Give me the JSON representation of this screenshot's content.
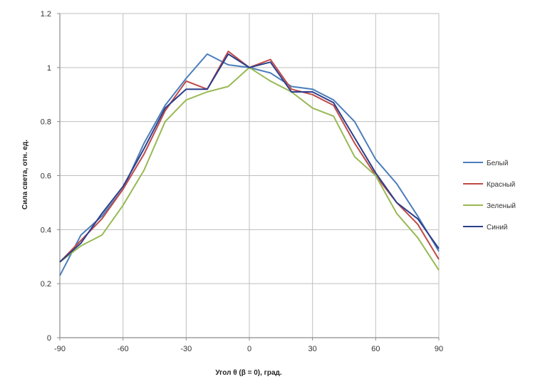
{
  "chart_data": {
    "type": "line",
    "title": "",
    "xlabel": "Угол θ (β = 0), град.",
    "ylabel": "Сила света, отн. ед.",
    "xlim": [
      -90,
      90
    ],
    "ylim": [
      0,
      1.2
    ],
    "x_ticks": [
      -90,
      -60,
      -30,
      0,
      30,
      60,
      90
    ],
    "y_ticks": [
      0,
      0.2,
      0.4,
      0.6,
      0.8,
      1,
      1.2
    ],
    "grid": true,
    "legend_position": "right",
    "x": [
      -90,
      -80,
      -70,
      -60,
      -50,
      -40,
      -30,
      -20,
      -10,
      0,
      10,
      20,
      30,
      40,
      50,
      60,
      70,
      80,
      90
    ],
    "series": [
      {
        "name": "Белый",
        "color": "#4a7ebb",
        "values": [
          0.23,
          0.38,
          0.45,
          0.55,
          0.72,
          0.86,
          0.96,
          1.05,
          1.01,
          1.0,
          0.98,
          0.93,
          0.92,
          0.88,
          0.8,
          0.66,
          0.57,
          0.45,
          0.32
        ]
      },
      {
        "name": "Красный",
        "color": "#be4b48",
        "values": [
          0.28,
          0.36,
          0.44,
          0.55,
          0.68,
          0.84,
          0.95,
          0.92,
          1.06,
          1.0,
          1.03,
          0.92,
          0.9,
          0.86,
          0.72,
          0.6,
          0.5,
          0.42,
          0.29
        ]
      },
      {
        "name": "Зеленый",
        "color": "#98b954",
        "values": [
          0.28,
          0.34,
          0.38,
          0.49,
          0.62,
          0.8,
          0.88,
          0.91,
          0.93,
          1.0,
          0.95,
          0.91,
          0.85,
          0.82,
          0.67,
          0.6,
          0.46,
          0.37,
          0.25
        ]
      },
      {
        "name": "Синий",
        "color": "#2c3e8c",
        "values": [
          0.28,
          0.35,
          0.46,
          0.56,
          0.7,
          0.85,
          0.92,
          0.92,
          1.05,
          1.0,
          1.02,
          0.91,
          0.91,
          0.87,
          0.74,
          0.61,
          0.5,
          0.44,
          0.33
        ]
      }
    ]
  }
}
